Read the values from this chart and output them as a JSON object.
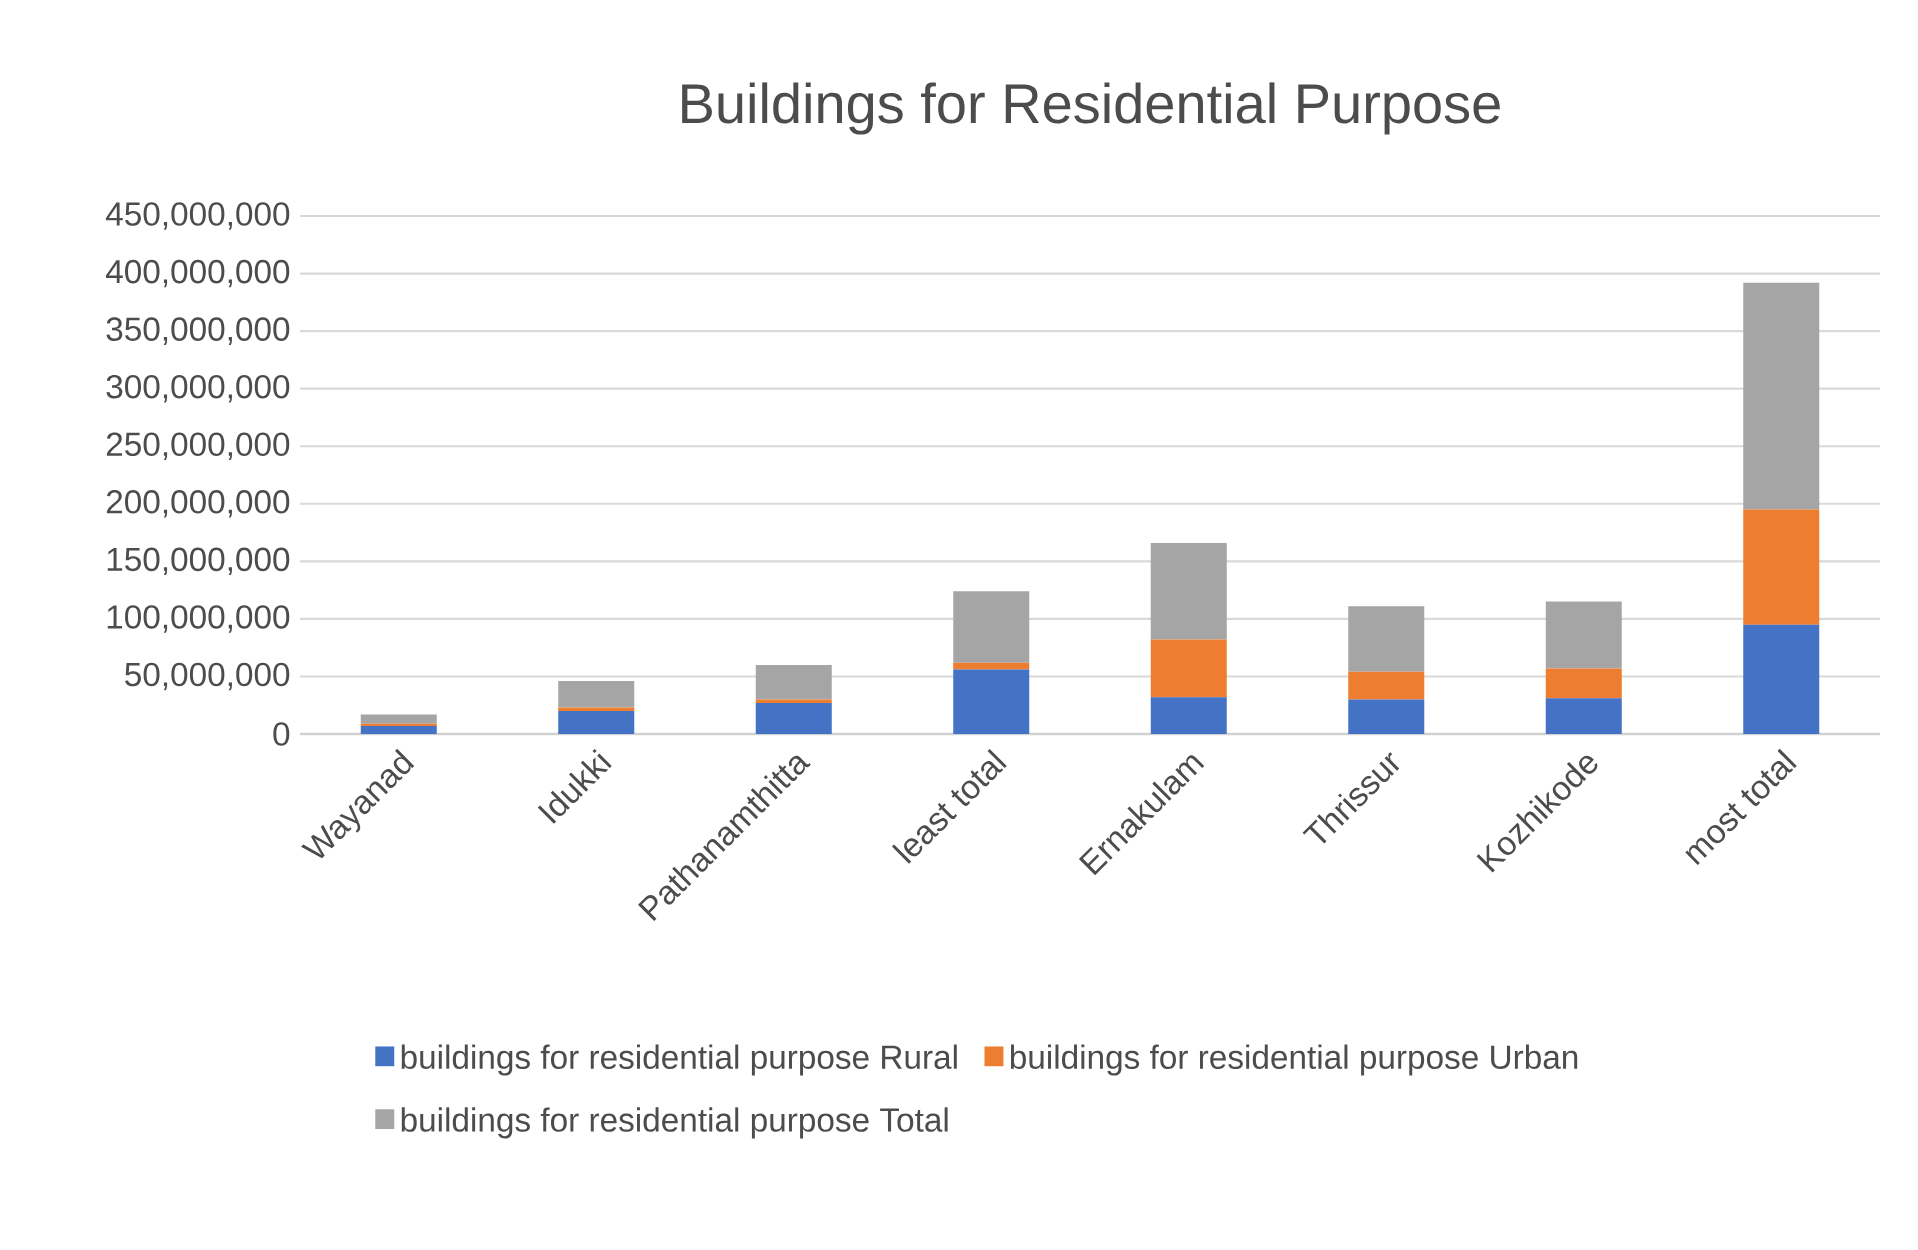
{
  "chart_data": {
    "type": "bar",
    "stacked": true,
    "title": "Buildings for Residential Purpose",
    "categories": [
      "Wayanad",
      "Idukki",
      "Pathanamthitta",
      "least total",
      "Ernakulam",
      "Thrissur",
      "Kozhikode",
      "most total"
    ],
    "series": [
      {
        "name": "buildings for residential purpose Rural",
        "color": "#4472c4",
        "values": [
          7000000,
          20000000,
          27000000,
          56000000,
          32000000,
          30000000,
          31000000,
          95000000
        ]
      },
      {
        "name": "buildings for residential purpose Urban",
        "color": "#ed7d31",
        "values": [
          2000000,
          3000000,
          3000000,
          6000000,
          50000000,
          24000000,
          26000000,
          100000000
        ]
      },
      {
        "name": "buildings for residential purpose Total",
        "color": "#a5a5a5",
        "values": [
          8000000,
          23000000,
          30000000,
          62000000,
          84000000,
          57000000,
          58000000,
          197000000
        ]
      }
    ],
    "ylim": [
      0,
      450000000
    ],
    "yticks": [
      {
        "value": 0,
        "label": "0"
      },
      {
        "value": 50000000,
        "label": "50,000,000"
      },
      {
        "value": 100000000,
        "label": "100,000,000"
      },
      {
        "value": 150000000,
        "label": "150,000,000"
      },
      {
        "value": 200000000,
        "label": "200,000,000"
      },
      {
        "value": 250000000,
        "label": "250,000,000"
      },
      {
        "value": 300000000,
        "label": "300,000,000"
      },
      {
        "value": 350000000,
        "label": "350,000,000"
      },
      {
        "value": 400000000,
        "label": "400,000,000"
      },
      {
        "value": 450000000,
        "label": "450,000,000"
      }
    ],
    "grid": "y",
    "legend": "bottom"
  }
}
